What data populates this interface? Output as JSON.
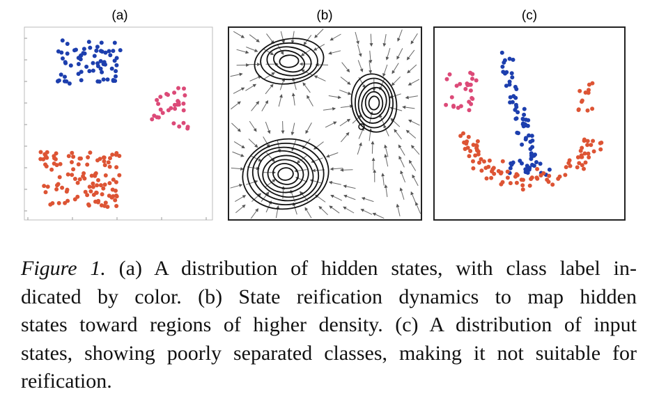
{
  "figure": {
    "panels": [
      {
        "label": "(a)"
      },
      {
        "label": "(b)"
      },
      {
        "label": "(c)"
      }
    ]
  },
  "caption": {
    "label": "Figure 1.",
    "lines": [
      "(a) A distribution of hidden states, with class label in-",
      "dicated by color.  (b) State reification dynamics to map hidden",
      "states toward regions of higher density. (c) A distribution of input",
      "states, showing poorly separated classes, making it not suitable for",
      "reification."
    ]
  }
}
